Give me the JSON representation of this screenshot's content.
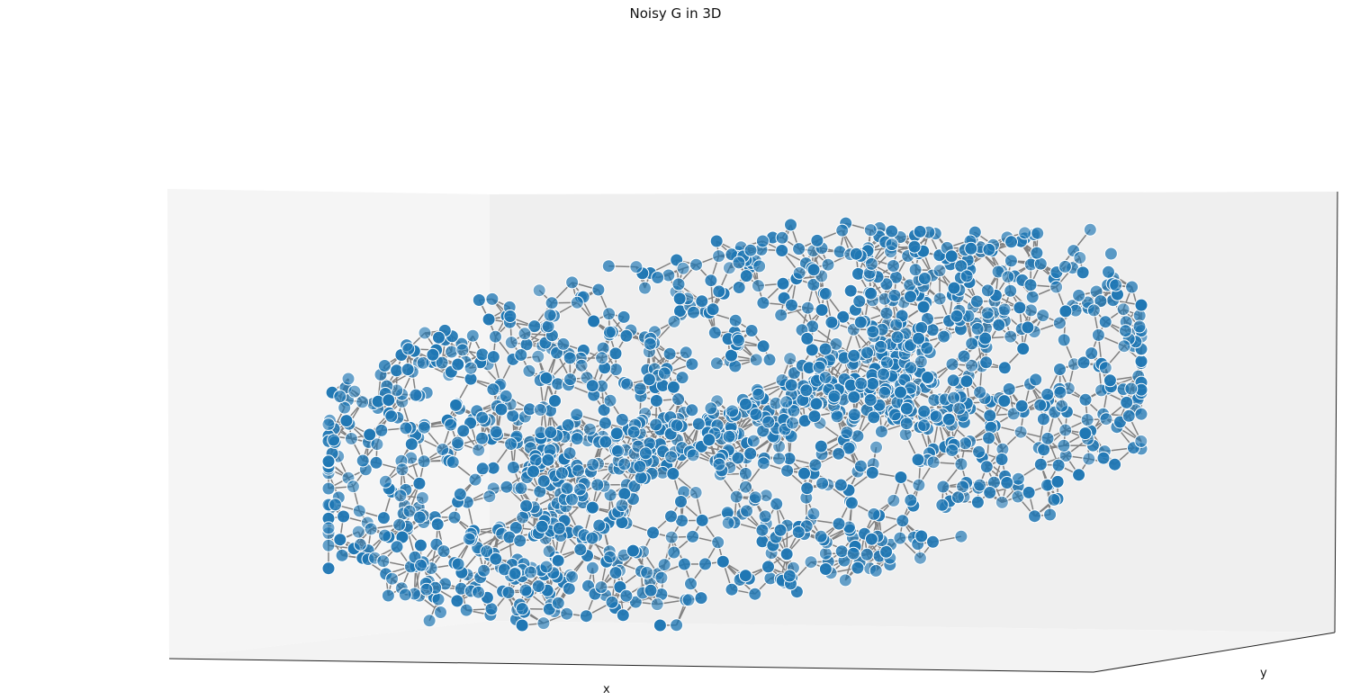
{
  "chart_data": {
    "type": "scatter",
    "projection": "3d",
    "title": "Noisy G in 3D",
    "xlabel": "x",
    "ylabel": "y",
    "zlabel": "",
    "grid": false,
    "tick_labels_shown": false,
    "marker_color": "#1f77b4",
    "marker_edge_color": "#ffffff",
    "edge_color": "#808080",
    "pane_colors": {
      "left": "#f5f5f5",
      "back": "#efefef",
      "floor": "#f3f3f3"
    },
    "shape_description": "Noisy torus-like ring point cloud in 3D, points connected by grey edges to nearby neighbours"
  }
}
